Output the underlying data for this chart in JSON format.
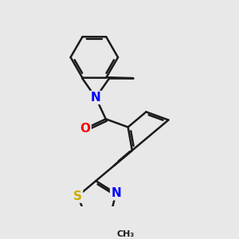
{
  "bg": "#E8E8E8",
  "bond_color": "#1a1a1a",
  "lw": 1.8,
  "atom_colors": {
    "N": "#0000FF",
    "O": "#FF0000",
    "S": "#CCAA00"
  },
  "figsize": [
    3.0,
    3.0
  ],
  "dpi": 100
}
